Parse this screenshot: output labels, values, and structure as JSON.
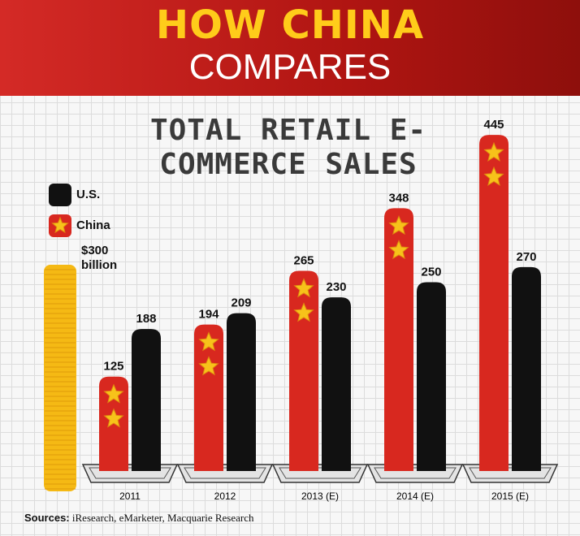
{
  "header": {
    "title": "HOW CHINA",
    "subtitle": "COMPARES"
  },
  "chart_data": {
    "type": "bar",
    "title": "TOTAL RETAIL E-COMMERCE SALES",
    "categories": [
      "2011",
      "2012",
      "2013 (E)",
      "2014 (E)",
      "2015 (E)"
    ],
    "series": [
      {
        "name": "China",
        "color": "#d8281f",
        "values": [
          125,
          194,
          265,
          348,
          445
        ]
      },
      {
        "name": "U.S.",
        "color": "#111111",
        "values": [
          188,
          209,
          230,
          250,
          270
        ]
      }
    ],
    "scale_reference": {
      "value": 300,
      "label": "$300 billion",
      "color": "#f5b914"
    }
  },
  "footer": {
    "sources_label": "Sources:",
    "sources": "iResearch, eMarketer, Macquarie Research"
  }
}
